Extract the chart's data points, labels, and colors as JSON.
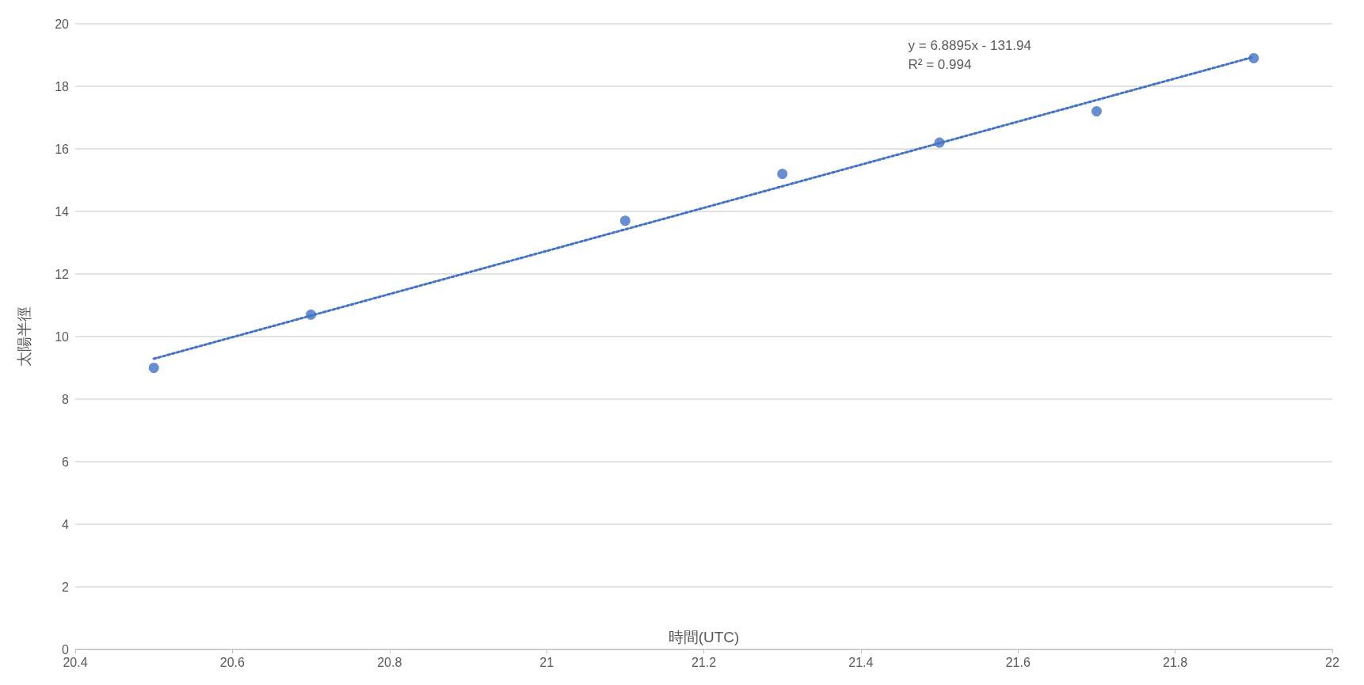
{
  "chart_data": {
    "type": "scatter",
    "xlabel": "時間(UTC)",
    "ylabel": "太陽半徑",
    "annotations": [
      "y = 6.8895x - 131.94",
      "R² = 0.994"
    ],
    "x": [
      20.5,
      20.7,
      21.1,
      21.3,
      21.5,
      21.7,
      21.9
    ],
    "series": [
      {
        "color": "#4472c4",
        "marker": "circle",
        "values": [
          9.0,
          10.7,
          13.7,
          15.2,
          16.2,
          17.2,
          18.9
        ]
      },
      {
        "type": "line",
        "color": "#4472c4",
        "line_style": "dotted",
        "marker": "none",
        "x": [
          20.5,
          21.9
        ],
        "values": [
          9.29,
          18.94
        ]
      }
    ],
    "xlim": [
      20.4,
      22
    ],
    "xticks": [
      20.4,
      20.6,
      20.8,
      21,
      21.2,
      21.4,
      21.6,
      21.8,
      22
    ],
    "ylim": [
      0,
      20
    ],
    "yticks": [
      0,
      2,
      4,
      6,
      8,
      10,
      12,
      14,
      16,
      18,
      20
    ],
    "grid": "y"
  }
}
